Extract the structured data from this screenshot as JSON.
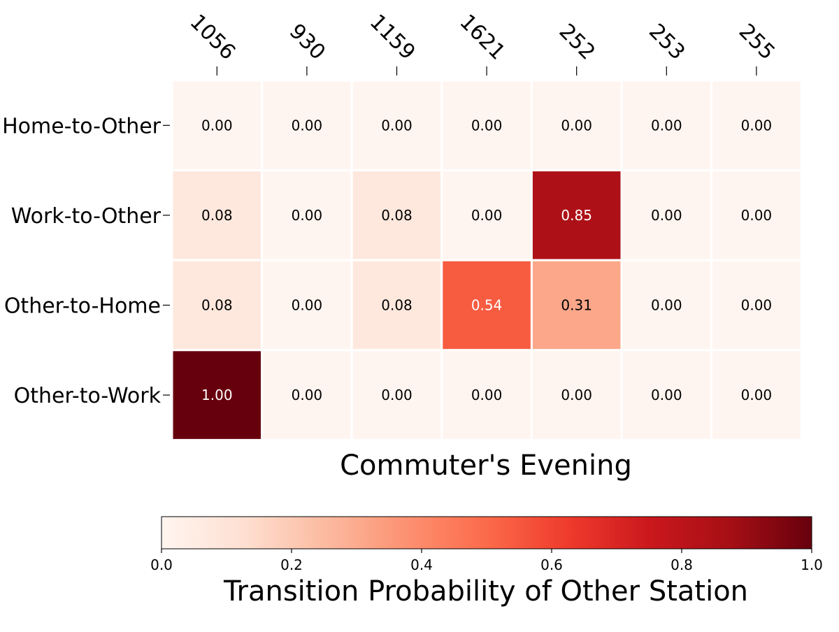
{
  "chart_data": {
    "type": "heatmap",
    "title": "Commuter's Evening",
    "x_categories": [
      "1056",
      "930",
      "1159",
      "1621",
      "252",
      "253",
      "255"
    ],
    "y_categories": [
      "Home-to-Other",
      "Work-to-Other",
      "Other-to-Home",
      "Other-to-Work"
    ],
    "values": [
      [
        0.0,
        0.0,
        0.0,
        0.0,
        0.0,
        0.0,
        0.0
      ],
      [
        0.08,
        0.0,
        0.08,
        0.0,
        0.85,
        0.0,
        0.0
      ],
      [
        0.08,
        0.0,
        0.08,
        0.54,
        0.31,
        0.0,
        0.0
      ],
      [
        1.0,
        0.0,
        0.0,
        0.0,
        0.0,
        0.0,
        0.0
      ]
    ],
    "value_format_decimals": 2,
    "colormap": "Reds",
    "x_tick_position": "top",
    "colorbar": {
      "label": "Transition Probability of Other Station",
      "orientation": "horizontal",
      "placement": "bottom",
      "range": [
        0.0,
        1.0
      ],
      "ticks": [
        "0.0",
        "0.2",
        "0.4",
        "0.6",
        "0.8",
        "1.0"
      ]
    },
    "grid": false
  }
}
